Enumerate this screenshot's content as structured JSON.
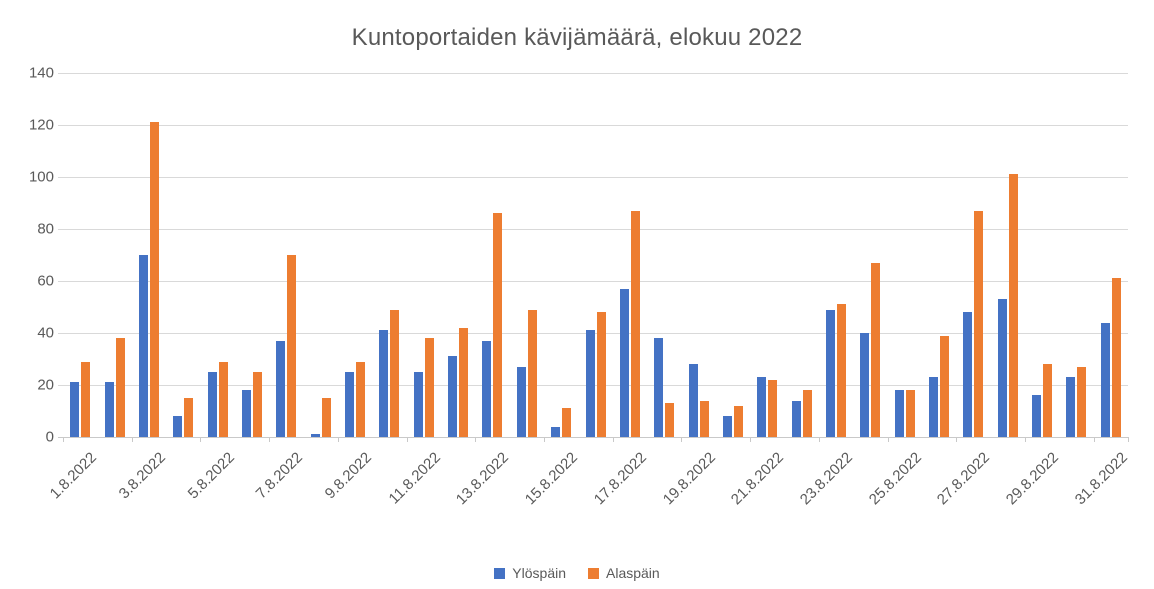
{
  "title": "Kuntoportaiden kävijämäärä, elokuu 2022",
  "colors": {
    "series_up": "#4472C4",
    "series_down": "#ED7D31",
    "gridline": "#D9D9D9",
    "text": "#595959",
    "background": "#FFFFFF"
  },
  "chart_data": {
    "type": "bar",
    "title": "Kuntoportaiden kävijämäärä, elokuu 2022",
    "xlabel": "",
    "ylabel": "",
    "ylim": [
      0,
      140
    ],
    "ytick_step": 20,
    "yticks": [
      0,
      20,
      40,
      60,
      80,
      100,
      120,
      140
    ],
    "grid": true,
    "legend_position": "bottom",
    "x_label_rotation_deg": -45,
    "x_labels_shown": [
      "1.8.2022",
      "3.8.2022",
      "5.8.2022",
      "7.8.2022",
      "9.8.2022",
      "11.8.2022",
      "13.8.2022",
      "15.8.2022",
      "17.8.2022",
      "19.8.2022",
      "21.8.2022",
      "23.8.2022",
      "25.8.2022",
      "27.8.2022",
      "29.8.2022",
      "31.8.2022"
    ],
    "categories": [
      "1.8.2022",
      "2.8.2022",
      "3.8.2022",
      "4.8.2022",
      "5.8.2022",
      "6.8.2022",
      "7.8.2022",
      "8.8.2022",
      "9.8.2022",
      "10.8.2022",
      "11.8.2022",
      "12.8.2022",
      "13.8.2022",
      "14.8.2022",
      "15.8.2022",
      "16.8.2022",
      "17.8.2022",
      "18.8.2022",
      "19.8.2022",
      "20.8.2022",
      "21.8.2022",
      "22.8.2022",
      "23.8.2022",
      "24.8.2022",
      "25.8.2022",
      "26.8.2022",
      "27.8.2022",
      "28.8.2022",
      "29.8.2022",
      "30.8.2022",
      "31.8.2022"
    ],
    "series": [
      {
        "name": "Ylöspäin",
        "color": "#4472C4",
        "values": [
          21,
          21,
          70,
          8,
          25,
          18,
          37,
          1,
          25,
          41,
          25,
          31,
          37,
          27,
          4,
          41,
          57,
          38,
          28,
          8,
          23,
          14,
          49,
          40,
          18,
          23,
          48,
          53,
          16,
          23,
          44
        ]
      },
      {
        "name": "Alaspäin",
        "color": "#ED7D31",
        "values": [
          29,
          38,
          121,
          15,
          29,
          25,
          70,
          15,
          29,
          49,
          38,
          42,
          86,
          49,
          11,
          48,
          87,
          13,
          14,
          12,
          22,
          18,
          51,
          67,
          18,
          39,
          87,
          101,
          28,
          27,
          61
        ]
      }
    ]
  }
}
